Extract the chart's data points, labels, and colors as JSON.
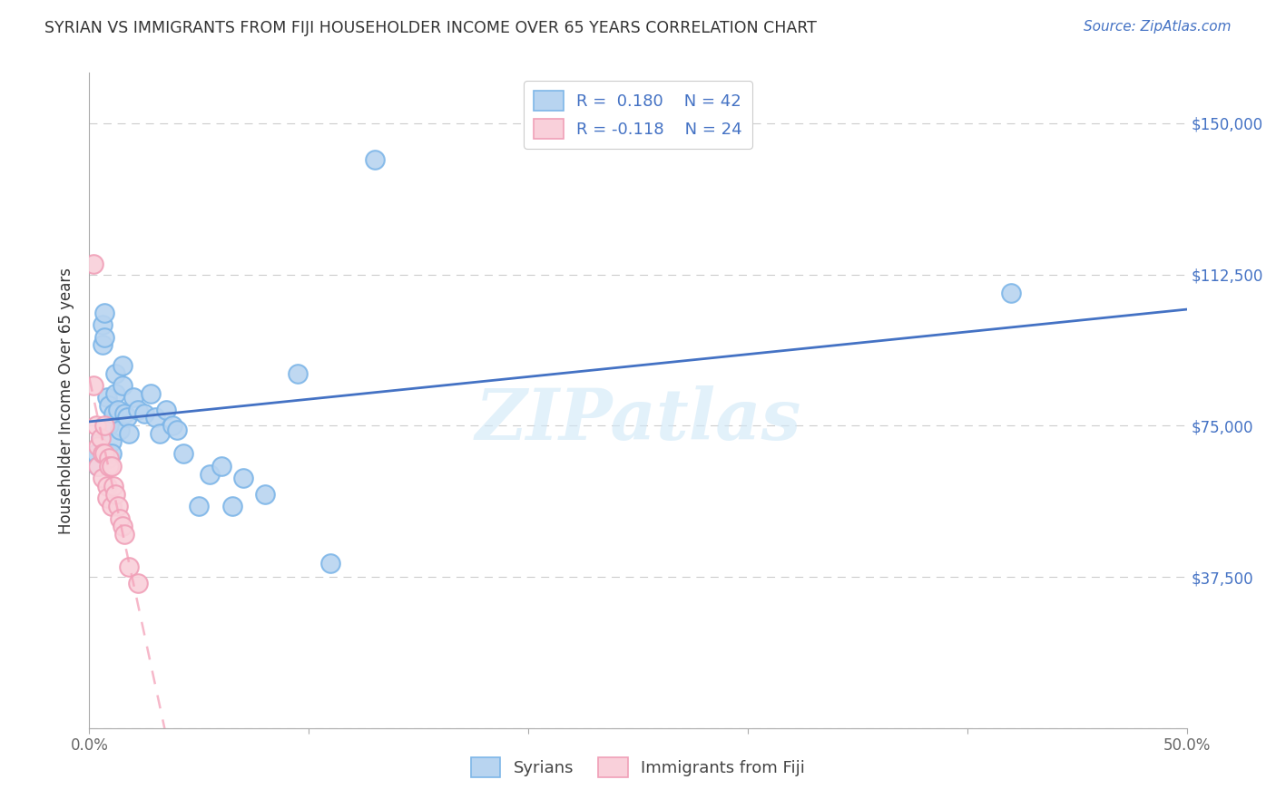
{
  "title": "SYRIAN VS IMMIGRANTS FROM FIJI HOUSEHOLDER INCOME OVER 65 YEARS CORRELATION CHART",
  "source": "Source: ZipAtlas.com",
  "ylabel": "Householder Income Over 65 years",
  "watermark": "ZIPatlas",
  "legend_label_blue": "Syrians",
  "legend_label_pink": "Immigrants from Fiji",
  "xlim": [
    0.0,
    0.5
  ],
  "ylim": [
    0,
    162500
  ],
  "yticks": [
    0,
    37500,
    75000,
    112500,
    150000
  ],
  "ytick_labels": [
    "",
    "$37,500",
    "$75,000",
    "$112,500",
    "$150,000"
  ],
  "xticks": [
    0.0,
    0.1,
    0.2,
    0.3,
    0.4,
    0.5
  ],
  "xtick_labels": [
    "0.0%",
    "",
    "",
    "",
    "",
    "50.0%"
  ],
  "blue_scatter_face": "#B8D4F0",
  "blue_scatter_edge": "#7EB6E8",
  "pink_scatter_face": "#F9D0DA",
  "pink_scatter_edge": "#F0A0B8",
  "line_blue_color": "#4472C4",
  "line_pink_color": "#F4A0B8",
  "background_color": "#FFFFFF",
  "syrians_x": [
    0.003,
    0.004,
    0.005,
    0.006,
    0.006,
    0.007,
    0.007,
    0.008,
    0.009,
    0.009,
    0.01,
    0.01,
    0.011,
    0.012,
    0.012,
    0.013,
    0.014,
    0.015,
    0.015,
    0.016,
    0.017,
    0.018,
    0.02,
    0.022,
    0.025,
    0.028,
    0.03,
    0.032,
    0.035,
    0.038,
    0.04,
    0.043,
    0.05,
    0.055,
    0.06,
    0.065,
    0.07,
    0.08,
    0.095,
    0.11,
    0.42,
    0.13
  ],
  "syrians_y": [
    68000,
    65000,
    72000,
    95000,
    100000,
    103000,
    97000,
    82000,
    80000,
    75000,
    71000,
    68000,
    78000,
    83000,
    88000,
    79000,
    74000,
    85000,
    90000,
    78000,
    77000,
    73000,
    82000,
    79000,
    78000,
    83000,
    77000,
    73000,
    79000,
    75000,
    74000,
    68000,
    55000,
    63000,
    65000,
    55000,
    62000,
    58000,
    88000,
    41000,
    108000,
    141000
  ],
  "fiji_x": [
    0.002,
    0.002,
    0.003,
    0.004,
    0.004,
    0.005,
    0.006,
    0.006,
    0.007,
    0.007,
    0.008,
    0.008,
    0.009,
    0.009,
    0.01,
    0.01,
    0.011,
    0.012,
    0.013,
    0.014,
    0.015,
    0.016,
    0.018,
    0.022
  ],
  "fiji_y": [
    115000,
    85000,
    75000,
    70000,
    65000,
    72000,
    68000,
    62000,
    75000,
    68000,
    60000,
    57000,
    67000,
    65000,
    65000,
    55000,
    60000,
    58000,
    55000,
    52000,
    50000,
    48000,
    40000,
    36000
  ]
}
